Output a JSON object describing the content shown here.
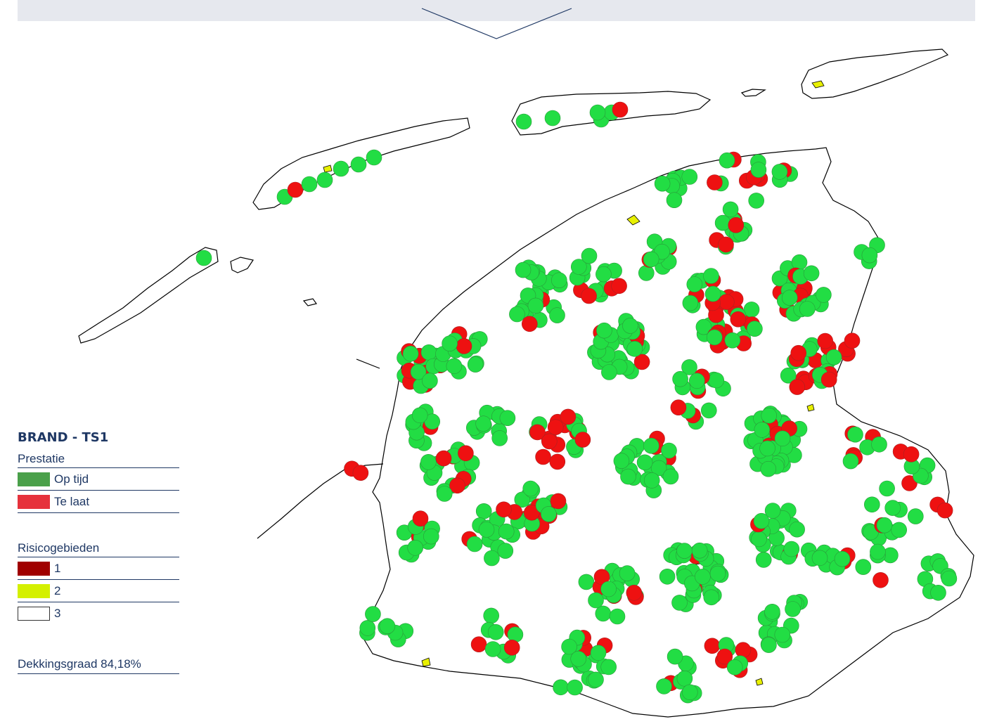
{
  "legend": {
    "title": "BRAND - TS1",
    "prestatie": {
      "heading": "Prestatie",
      "items": [
        {
          "label": "Op tijd",
          "color": "#4aa04a"
        },
        {
          "label": "Te laat",
          "color": "#e6323c"
        }
      ]
    },
    "risico": {
      "heading": "Risicogebieden",
      "items": [
        {
          "label": "1",
          "color": "#a00000"
        },
        {
          "label": "2",
          "color": "#d4f000"
        },
        {
          "label": "3",
          "color": "#ffffff"
        }
      ]
    },
    "coverage_text": "Dekkingsgraad 84,18%"
  },
  "map_colors": {
    "on_time_marker": "#22dd44",
    "late_marker": "#ee1111",
    "outline": "#000000",
    "risk_zone": "#e8f000"
  }
}
